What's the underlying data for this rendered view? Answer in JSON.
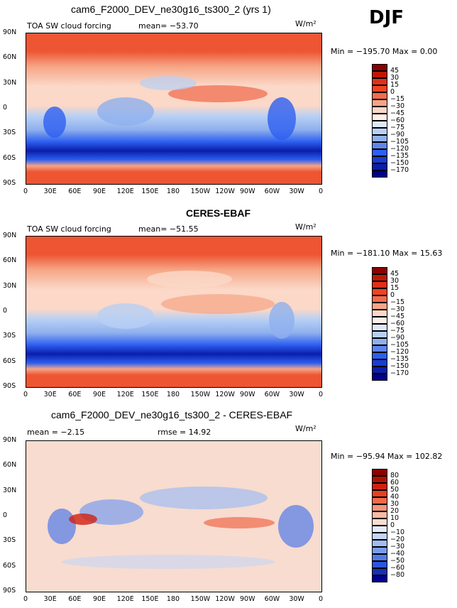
{
  "season": "DJF",
  "colors": {
    "deep_red": "#8b0000",
    "red": "#ee4422",
    "orange": "#f07050",
    "light": "#fbd8c8",
    "white": "#f2f2f2",
    "lightblue": "#b8d0f4",
    "blue": "#2d5ff0",
    "navy": "#00008b"
  },
  "lat_labels": [
    "90N",
    "60N",
    "30N",
    "0",
    "30S",
    "60S",
    "90S"
  ],
  "lon_labels": [
    "0",
    "30E",
    "60E",
    "90E",
    "120E",
    "150E",
    "180",
    "150W",
    "120W",
    "90W",
    "60W",
    "30W",
    "0"
  ],
  "panels": [
    {
      "title": "cam6_F2000_DEV_ne30g16_ts300_2 (yrs 1)",
      "left_text": "TOA SW cloud forcing",
      "mean_text": "mean=  −53.70",
      "units": "W/m²",
      "minmax": "Min = −195.70  Max =   0.00",
      "colorbar": {
        "labels": [
          "45",
          "30",
          "15",
          "0",
          "−15",
          "−30",
          "−45",
          "−60",
          "−75",
          "−90",
          "−105",
          "−120",
          "−135",
          "−150",
          "−170"
        ],
        "colors": [
          "#8b0000",
          "#c01800",
          "#e0301a",
          "#ee4422",
          "#f26b4f",
          "#f6a585",
          "#fbd8c8",
          "#fff0e8",
          "#dde8fa",
          "#b8d0f4",
          "#8fb0ee",
          "#5d86ec",
          "#2d5ff0",
          "#1a3cd0",
          "#0a1eaa",
          "#00008b"
        ]
      }
    },
    {
      "title": "CERES-EBAF",
      "left_text": "TOA SW cloud forcing",
      "mean_text": "mean=  −51.55",
      "units": "W/m²",
      "minmax": "Min = −181.10  Max =  15.63",
      "colorbar": {
        "labels": [
          "45",
          "30",
          "15",
          "0",
          "−15",
          "−30",
          "−45",
          "−60",
          "−75",
          "−90",
          "−105",
          "−120",
          "−135",
          "−150",
          "−170"
        ],
        "colors": [
          "#8b0000",
          "#c01800",
          "#e0301a",
          "#ee4422",
          "#f26b4f",
          "#f6a585",
          "#fbd8c8",
          "#fff0e8",
          "#dde8fa",
          "#b8d0f4",
          "#8fb0ee",
          "#5d86ec",
          "#2d5ff0",
          "#1a3cd0",
          "#0a1eaa",
          "#00008b"
        ]
      }
    },
    {
      "title": "cam6_F2000_DEV_ne30g16_ts300_2 - CERES-EBAF",
      "left_text": "mean =  −2.15",
      "mean_text": "rmse =  14.92",
      "units": "W/m²",
      "minmax": "Min = −95.94  Max = 102.82",
      "colorbar": {
        "labels": [
          "80",
          "60",
          "50",
          "40",
          "30",
          "20",
          "10",
          "0",
          "−10",
          "−20",
          "−30",
          "−40",
          "−50",
          "−60",
          "−80"
        ],
        "colors": [
          "#8b0000",
          "#b01000",
          "#d02010",
          "#e8401f",
          "#f06a4c",
          "#f59478",
          "#f8bba3",
          "#fbddd0",
          "#e4ecfa",
          "#c6d6f6",
          "#a1bcf2",
          "#7a9cee",
          "#5279e8",
          "#2d55dc",
          "#1530b8",
          "#00008b"
        ]
      }
    }
  ]
}
